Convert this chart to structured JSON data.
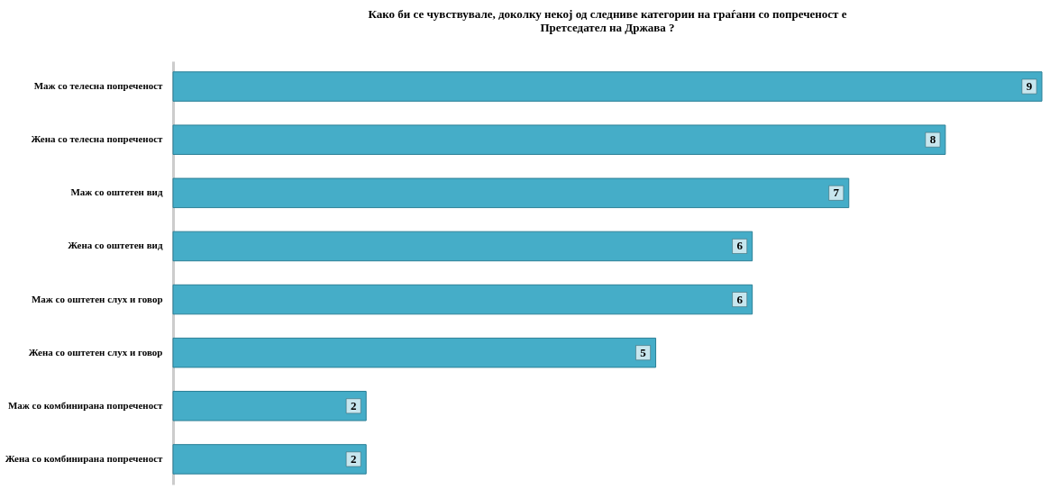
{
  "chart_data": {
    "type": "bar",
    "orientation": "horizontal",
    "title": "Како би се чувствувале, доколку некој од следниве категории на граѓани со попреченост е\nПретседател на Држава ?",
    "categories": [
      "Маж со телесна попреченост",
      "Жена  со телесна попреченост",
      "Маж со оштетен вид",
      "Жена со оштетен вид",
      "Маж со оштетен слух и говор",
      "Жена со оштетен слух и говор",
      "Маж со комбинирана попреченост",
      "Жена со комбинирана попреченост"
    ],
    "values": [
      9,
      8,
      7,
      6,
      6,
      5,
      2,
      2
    ],
    "color": "#45adc8",
    "xlim": [
      0,
      9
    ],
    "data_labels": true
  }
}
